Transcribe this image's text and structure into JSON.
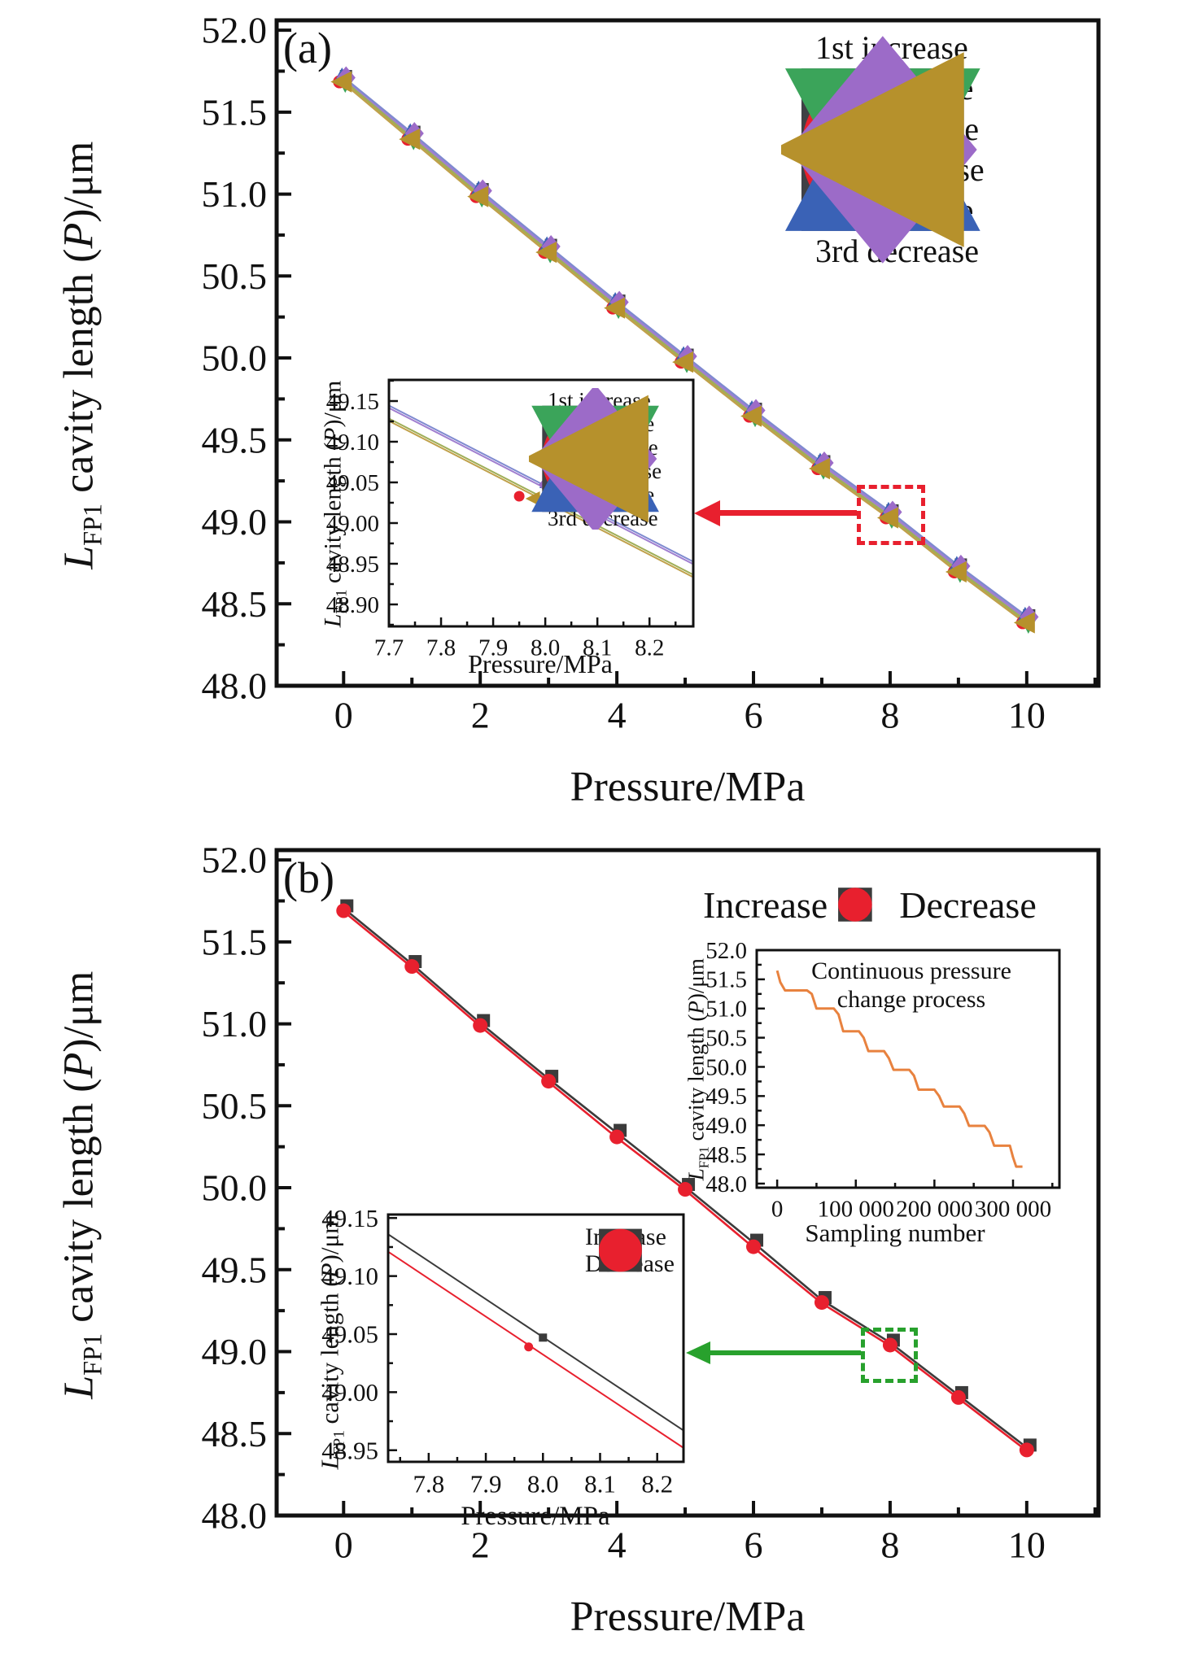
{
  "figure": {
    "panel_a_label": "(a)",
    "panel_b_label": "(b)"
  },
  "y_title": {
    "l": "L",
    "sub": "FP1",
    "mid": " cavity length (",
    "p": "P",
    "end": ")/μm"
  },
  "annotations": {
    "panel_a": {
      "zoom_box_color": "#e8202e"
    },
    "panel_b": {
      "zoom_box_color": "#28a12d"
    }
  },
  "chart_data": [
    {
      "id": "main_a",
      "type": "scatter",
      "title": "",
      "legend_position": "top-right",
      "x": {
        "label": "Pressure/MPa",
        "lim": [
          -0.98,
          11.05
        ],
        "ticks": [
          0,
          2,
          4,
          6,
          8,
          10
        ],
        "tick_labels": [
          "0",
          "2",
          "4",
          "6",
          "8",
          "10"
        ],
        "minor": [
          1,
          3,
          5,
          7,
          9,
          11
        ]
      },
      "y": {
        "label": "L_FP1 cavity length (P)/μm",
        "lim": [
          48.0,
          52.06
        ],
        "ticks": [
          48.0,
          48.5,
          49.0,
          49.5,
          50.0,
          50.5,
          51.0,
          51.5,
          52.0
        ],
        "tick_labels": [
          "48.0",
          "48.5",
          "49.0",
          "49.5",
          "50.0",
          "50.5",
          "51.0",
          "51.5",
          "52.0"
        ],
        "minor": [
          48.25,
          48.75,
          49.25,
          49.75,
          50.25,
          50.75,
          51.25,
          51.75
        ]
      },
      "categories": [
        0,
        1,
        2,
        3,
        4,
        5,
        6,
        7,
        8,
        9,
        10
      ],
      "series": [
        {
          "name": "1st increase",
          "marker": "square",
          "color": "#3f4045",
          "values": [
            51.7,
            51.36,
            51.01,
            50.67,
            50.33,
            50.0,
            49.67,
            49.35,
            49.05,
            48.72,
            48.41
          ]
        },
        {
          "name": "1st decrease",
          "marker": "circle",
          "color": "#e8202e",
          "values": [
            51.69,
            51.34,
            50.99,
            50.65,
            50.31,
            49.98,
            49.65,
            49.33,
            49.03,
            48.7,
            48.39
          ]
        },
        {
          "name": "2nd increase",
          "marker": "triangle-up",
          "color": "#3a62b6",
          "values": [
            51.7,
            51.36,
            51.01,
            50.67,
            50.33,
            50.0,
            49.67,
            49.35,
            49.05,
            48.72,
            48.41
          ]
        },
        {
          "name": "2nd decrease",
          "marker": "triangle-down",
          "color": "#3ba45a",
          "values": [
            51.69,
            51.34,
            50.99,
            50.65,
            50.31,
            49.98,
            49.65,
            49.33,
            49.03,
            48.7,
            48.39
          ]
        },
        {
          "name": "3rd increase",
          "marker": "diamond",
          "color": "#9c6bc8",
          "values": [
            51.7,
            51.36,
            51.01,
            50.67,
            50.33,
            50.0,
            49.67,
            49.35,
            49.05,
            48.72,
            48.41
          ]
        },
        {
          "name": "3rd decrease",
          "marker": "triangle-left",
          "color": "#b6912c",
          "values": [
            51.69,
            51.34,
            50.99,
            50.65,
            50.31,
            49.98,
            49.65,
            49.33,
            49.03,
            48.7,
            48.39
          ]
        }
      ],
      "fit_lines": [
        {
          "colors": [
            "#7f8ad0",
            "#a07fd0"
          ],
          "x": [
            0,
            1,
            2,
            3,
            4,
            5,
            6,
            7,
            8,
            9,
            10
          ],
          "y": [
            51.705,
            51.365,
            51.015,
            50.675,
            50.335,
            50.005,
            49.675,
            49.355,
            49.055,
            48.725,
            48.415
          ]
        },
        {
          "colors": [
            "#9fae57",
            "#c0a14b"
          ],
          "x": [
            0,
            1,
            2,
            3,
            4,
            5,
            6,
            7,
            8,
            9,
            10
          ],
          "y": [
            51.685,
            51.335,
            50.985,
            50.645,
            50.305,
            49.975,
            49.645,
            49.325,
            49.025,
            48.695,
            48.385
          ]
        }
      ]
    },
    {
      "id": "inset_a_zoom",
      "type": "scatter",
      "title": "",
      "legend_position": "top-right",
      "x": {
        "label": "Pressure/MPa",
        "lim": [
          7.7,
          8.284
        ],
        "ticks": [
          7.7,
          7.8,
          7.9,
          8.0,
          8.1,
          8.2
        ],
        "tick_labels": [
          "7.7",
          "7.8",
          "7.9",
          "8.0",
          "8.1",
          "8.2"
        ],
        "minor": [
          7.75,
          7.85,
          7.95,
          8.05,
          8.15,
          8.25
        ]
      },
      "y": {
        "label": "L_FP1 cavity length (P)/μm",
        "lim": [
          48.873,
          49.176
        ],
        "ticks": [
          48.9,
          48.95,
          49.0,
          49.05,
          49.1,
          49.15
        ],
        "tick_labels": [
          "48.90",
          "48.95",
          "49.00",
          "49.05",
          "49.10",
          "49.15"
        ],
        "minor": [
          48.875,
          48.925,
          48.975,
          49.025,
          49.075,
          49.125,
          49.175
        ]
      },
      "series": [
        {
          "name": "1st decrease",
          "marker": "circle",
          "color": "#e8202e",
          "x": [
            7.95
          ],
          "values": [
            49.033
          ]
        },
        {
          "name": "3rd decrease",
          "marker": "triangle-left",
          "color": "#b6912c",
          "x": [
            7.978
          ],
          "values": [
            49.03
          ]
        },
        {
          "name": "2nd increase",
          "marker": "triangle-up",
          "color": "#3a62b6",
          "x": [
            8.0
          ],
          "values": [
            49.049
          ]
        },
        {
          "name": "3rd increase",
          "marker": "diamond",
          "color": "#9c6bc8",
          "x": [
            8.0
          ],
          "values": [
            49.047
          ]
        }
      ],
      "fit_lines": [
        {
          "colors": [
            "#7f8ad0",
            "#a07fd0"
          ],
          "x": [
            7.7,
            8.284
          ],
          "y": [
            49.143,
            48.951
          ]
        },
        {
          "colors": [
            "#9fae57",
            "#c0a14b"
          ],
          "x": [
            7.7,
            8.284
          ],
          "y": [
            49.127,
            48.935
          ]
        }
      ]
    },
    {
      "id": "main_b",
      "type": "scatter",
      "title": "",
      "legend_position": "top-right",
      "x": {
        "label": "Pressure/MPa",
        "lim": [
          -0.98,
          11.05
        ],
        "ticks": [
          0,
          2,
          4,
          6,
          8,
          10
        ],
        "tick_labels": [
          "0",
          "2",
          "4",
          "6",
          "8",
          "10"
        ],
        "minor": [
          1,
          3,
          5,
          7,
          9,
          11
        ]
      },
      "y": {
        "label": "L_FP1 cavity length (P)/μm",
        "lim": [
          48.0,
          52.06
        ],
        "ticks": [
          48.0,
          48.5,
          49.0,
          49.5,
          50.0,
          50.5,
          51.0,
          51.5,
          52.0
        ],
        "tick_labels": [
          "48.0",
          "48.5",
          "49.0",
          "49.5",
          "50.0",
          "50.5",
          "51.0",
          "51.5",
          "52.0"
        ],
        "minor": [
          48.25,
          48.75,
          49.25,
          49.75,
          50.25,
          50.75,
          51.25,
          51.75
        ]
      },
      "categories": [
        0,
        1,
        2,
        3,
        4,
        5,
        6,
        7,
        8,
        9,
        10
      ],
      "series": [
        {
          "name": "Increase",
          "marker": "square",
          "color": "#3b3b3b",
          "values": [
            51.7,
            51.36,
            51.0,
            50.66,
            50.33,
            50.0,
            49.66,
            49.31,
            49.05,
            48.73,
            48.41
          ]
        },
        {
          "name": "Decrease",
          "marker": "circle",
          "color": "#e8202e",
          "values": [
            51.69,
            51.35,
            50.99,
            50.65,
            50.31,
            49.99,
            49.64,
            49.3,
            49.04,
            48.72,
            48.4
          ]
        }
      ],
      "fit_lines": [
        {
          "colors": [
            "#3b3b3b"
          ],
          "x": [
            0,
            1,
            2,
            3,
            4,
            5,
            6,
            7,
            8,
            9,
            10
          ],
          "y": [
            51.705,
            51.365,
            51.005,
            50.665,
            50.335,
            50.005,
            49.665,
            49.315,
            49.055,
            48.735,
            48.415
          ]
        },
        {
          "colors": [
            "#e8202e"
          ],
          "x": [
            0,
            1,
            2,
            3,
            4,
            5,
            6,
            7,
            8,
            9,
            10
          ],
          "y": [
            51.685,
            51.345,
            50.985,
            50.645,
            50.305,
            49.985,
            49.635,
            49.295,
            49.035,
            48.715,
            48.395
          ]
        }
      ]
    },
    {
      "id": "inset_b_zoom",
      "type": "scatter",
      "title": "",
      "legend_position": "top-right",
      "x": {
        "label": "Pressure/MPa",
        "lim": [
          7.729,
          8.246
        ],
        "ticks": [
          7.8,
          7.9,
          8.0,
          8.1,
          8.2
        ],
        "tick_labels": [
          "7.8",
          "7.9",
          "8.0",
          "8.1",
          "8.2"
        ],
        "minor": [
          7.75,
          7.85,
          7.95,
          8.05,
          8.15,
          8.25
        ]
      },
      "y": {
        "label": "L_FP1 cavity length (P)/μm",
        "lim": [
          48.94,
          49.153
        ],
        "ticks": [
          48.95,
          49.0,
          49.05,
          49.1,
          49.15
        ],
        "tick_labels": [
          "48.95",
          "49.00",
          "49.05",
          "49.10",
          "49.15"
        ],
        "minor": [
          48.975,
          49.025,
          49.075,
          49.125
        ]
      },
      "series": [
        {
          "name": "Increase",
          "marker": "square",
          "color": "#3b3b3b",
          "x": [
            8.0
          ],
          "values": [
            49.047
          ]
        },
        {
          "name": "Decrease",
          "marker": "circle",
          "color": "#e8202e",
          "x": [
            7.975
          ],
          "values": [
            49.039
          ]
        }
      ],
      "fit_lines": [
        {
          "colors": [
            "#3b3b3b"
          ],
          "x": [
            7.729,
            8.246
          ],
          "y": [
            49.136,
            48.967
          ]
        },
        {
          "colors": [
            "#e8202e"
          ],
          "x": [
            7.729,
            8.246
          ],
          "y": [
            49.121,
            48.952
          ]
        }
      ]
    },
    {
      "id": "inset_b_continuous",
      "type": "line",
      "title_line1": "Continuous pressure",
      "title_line2": "change process",
      "x": {
        "label": "Sampling number",
        "lim": [
          -26000,
          359000
        ],
        "ticks": [
          0,
          100000,
          200000,
          300000
        ],
        "tick_labels": [
          "0",
          "100 000",
          "200 000",
          "300 000"
        ],
        "minor": [
          50000,
          150000,
          250000,
          350000
        ]
      },
      "y": {
        "label": "L_FP1 cavity length (P)/μm",
        "lim": [
          47.93,
          52.0
        ],
        "ticks": [
          48.0,
          48.5,
          49.0,
          49.5,
          50.0,
          50.5,
          51.0,
          51.5,
          52.0
        ],
        "tick_labels": [
          "48.0",
          "48.5",
          "49.0",
          "49.5",
          "50.0",
          "50.5",
          "51.0",
          "51.5",
          "52.0"
        ],
        "minor": [
          48.25,
          48.75,
          49.25,
          49.75,
          50.25,
          50.75,
          51.25,
          51.75
        ]
      },
      "series": [
        {
          "name": "Continuous pressure change process",
          "marker": "none",
          "line": true,
          "color": "#e8823f",
          "x": [
            0,
            4000,
            10000,
            38000,
            44000,
            50000,
            72000,
            78000,
            84000,
            104000,
            110000,
            116000,
            136000,
            142000,
            148000,
            168000,
            174000,
            180000,
            200000,
            206000,
            212000,
            232000,
            238000,
            244000,
            264000,
            270000,
            276000,
            296000,
            300000,
            304000,
            312000
          ],
          "values": [
            51.65,
            51.45,
            51.31,
            51.31,
            51.25,
            51.0,
            51.0,
            50.9,
            50.61,
            50.61,
            50.5,
            50.27,
            50.27,
            50.15,
            49.95,
            49.95,
            49.85,
            49.61,
            49.61,
            49.5,
            49.32,
            49.32,
            49.2,
            48.99,
            48.99,
            48.88,
            48.65,
            48.65,
            48.45,
            48.29,
            48.29
          ]
        }
      ]
    }
  ]
}
